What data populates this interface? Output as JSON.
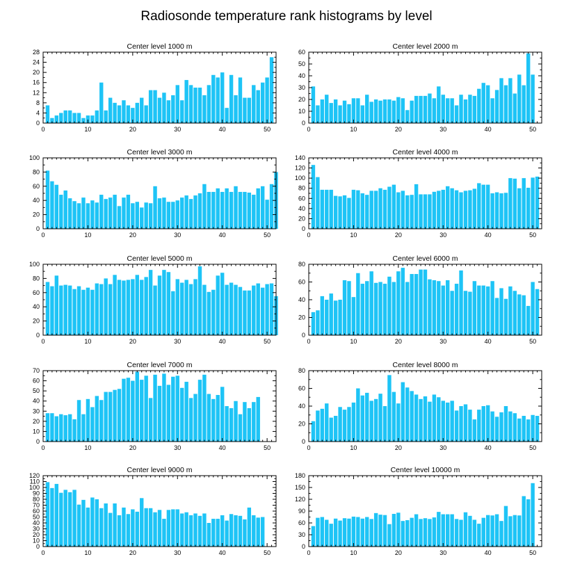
{
  "title": "Radiosonde temperature rank histograms by level",
  "colors": {
    "bar": "#1ec4f6",
    "axis": "#000000",
    "background": "#ffffff"
  },
  "chart_data": [
    {
      "type": "bar",
      "title": "Center level 1000 m",
      "xlim": [
        0,
        52
      ],
      "xticks": [
        0,
        10,
        20,
        30,
        40,
        50
      ],
      "ylim": [
        0,
        28
      ],
      "yticks": [
        0,
        4,
        8,
        12,
        16,
        20,
        24,
        28
      ],
      "values": [
        7,
        2,
        3,
        4,
        5,
        5,
        4,
        4,
        2,
        3,
        3,
        5,
        16,
        5,
        10,
        8,
        7,
        9,
        7,
        6,
        8,
        10,
        7,
        13,
        13,
        10,
        12,
        9,
        11,
        15,
        9,
        17,
        15,
        14,
        14,
        11,
        15,
        19,
        18,
        20,
        6,
        19,
        11,
        18,
        10,
        10,
        15,
        13,
        16,
        18,
        26
      ]
    },
    {
      "type": "bar",
      "title": "Center level 2000 m",
      "xlim": [
        0,
        52
      ],
      "xticks": [
        0,
        10,
        20,
        30,
        40,
        50
      ],
      "ylim": [
        0,
        60
      ],
      "yticks": [
        0,
        10,
        20,
        30,
        40,
        50,
        60
      ],
      "values": [
        31,
        15,
        20,
        24,
        17,
        20,
        15,
        19,
        16,
        21,
        21,
        15,
        24,
        18,
        20,
        19,
        20,
        20,
        19,
        22,
        21,
        11,
        19,
        23,
        23,
        23,
        25,
        21,
        31,
        24,
        21,
        21,
        15,
        24,
        20,
        24,
        23,
        29,
        34,
        32,
        21,
        28,
        38,
        32,
        38,
        25,
        41,
        32,
        59,
        41
      ]
    },
    {
      "type": "bar",
      "title": "Center level 3000 m",
      "xlim": [
        0,
        52
      ],
      "xticks": [
        0,
        10,
        20,
        30,
        40,
        50
      ],
      "ylim": [
        0,
        100
      ],
      "yticks": [
        0,
        20,
        40,
        60,
        80,
        100
      ],
      "values": [
        82,
        67,
        62,
        48,
        54,
        43,
        39,
        36,
        44,
        36,
        40,
        37,
        48,
        42,
        44,
        48,
        32,
        44,
        48,
        36,
        38,
        30,
        37,
        36,
        60,
        43,
        44,
        38,
        38,
        40,
        44,
        47,
        42,
        47,
        50,
        63,
        52,
        52,
        57,
        52,
        57,
        52,
        60,
        52,
        52,
        51,
        48,
        57,
        60,
        41,
        63,
        80
      ]
    },
    {
      "type": "bar",
      "title": "Center level 4000 m",
      "xlim": [
        0,
        52
      ],
      "xticks": [
        0,
        10,
        20,
        30,
        40,
        50
      ],
      "ylim": [
        0,
        140
      ],
      "yticks": [
        0,
        20,
        40,
        60,
        80,
        100,
        120,
        140
      ],
      "values": [
        126,
        102,
        77,
        77,
        77,
        65,
        64,
        66,
        61,
        77,
        76,
        70,
        67,
        75,
        75,
        80,
        77,
        83,
        87,
        72,
        75,
        66,
        67,
        88,
        68,
        68,
        68,
        73,
        75,
        77,
        84,
        80,
        76,
        72,
        75,
        76,
        79,
        90,
        87,
        87,
        70,
        72,
        70,
        71,
        100,
        99,
        80,
        100,
        81,
        101,
        103
      ]
    },
    {
      "type": "bar",
      "title": "Center level 5000 m",
      "xlim": [
        0,
        52
      ],
      "xticks": [
        0,
        10,
        20,
        30,
        40,
        50
      ],
      "ylim": [
        0,
        100
      ],
      "yticks": [
        0,
        20,
        40,
        60,
        80,
        100
      ],
      "values": [
        75,
        69,
        84,
        70,
        71,
        70,
        65,
        69,
        64,
        67,
        64,
        73,
        72,
        80,
        72,
        85,
        78,
        77,
        78,
        79,
        85,
        78,
        82,
        92,
        70,
        84,
        92,
        89,
        62,
        79,
        74,
        78,
        72,
        79,
        97,
        71,
        61,
        64,
        84,
        88,
        71,
        74,
        71,
        68,
        63,
        63,
        70,
        73,
        67,
        72,
        73,
        55
      ]
    },
    {
      "type": "bar",
      "title": "Center level 6000 m",
      "xlim": [
        0,
        52
      ],
      "xticks": [
        0,
        10,
        20,
        30,
        40,
        50
      ],
      "ylim": [
        0,
        80
      ],
      "yticks": [
        0,
        20,
        40,
        60,
        80
      ],
      "values": [
        26,
        28,
        44,
        40,
        47,
        39,
        40,
        62,
        61,
        43,
        70,
        58,
        61,
        72,
        59,
        60,
        58,
        66,
        60,
        72,
        76,
        60,
        69,
        69,
        74,
        74,
        63,
        62,
        61,
        56,
        62,
        50,
        58,
        73,
        50,
        49,
        61,
        56,
        56,
        55,
        61,
        42,
        53,
        41,
        55,
        50,
        46,
        45,
        33,
        60,
        52
      ]
    },
    {
      "type": "bar",
      "title": "Center level 7000 m",
      "xlim": [
        0,
        52
      ],
      "xticks": [
        0,
        10,
        20,
        30,
        40,
        50
      ],
      "ylim": [
        0,
        70
      ],
      "yticks": [
        0,
        10,
        20,
        30,
        40,
        50,
        60,
        70
      ],
      "values": [
        28,
        28,
        25,
        27,
        26,
        27,
        22,
        41,
        27,
        42,
        34,
        45,
        41,
        49,
        49,
        51,
        52,
        62,
        63,
        60,
        69,
        61,
        65,
        43,
        66,
        55,
        67,
        56,
        64,
        65,
        53,
        59,
        43,
        47,
        61,
        66,
        47,
        42,
        46,
        54,
        35,
        33,
        40,
        27,
        39,
        33,
        39,
        44
      ]
    },
    {
      "type": "bar",
      "title": "Center level 8000 m",
      "xlim": [
        0,
        52
      ],
      "xticks": [
        0,
        10,
        20,
        30,
        40,
        50
      ],
      "ylim": [
        0,
        80
      ],
      "yticks": [
        0,
        20,
        40,
        60,
        80
      ],
      "values": [
        23,
        35,
        37,
        43,
        27,
        29,
        39,
        36,
        39,
        44,
        60,
        52,
        55,
        46,
        48,
        54,
        40,
        75,
        56,
        43,
        67,
        61,
        57,
        53,
        48,
        51,
        45,
        53,
        50,
        46,
        44,
        46,
        35,
        40,
        42,
        36,
        25,
        36,
        40,
        41,
        34,
        28,
        33,
        40,
        34,
        32,
        26,
        29,
        25,
        30,
        29
      ]
    },
    {
      "type": "bar",
      "title": "Center level 9000 m",
      "xlim": [
        0,
        52
      ],
      "xticks": [
        0,
        10,
        20,
        30,
        40,
        50
      ],
      "ylim": [
        0,
        120
      ],
      "yticks": [
        0,
        10,
        20,
        30,
        40,
        50,
        60,
        70,
        80,
        90,
        100,
        110,
        120
      ],
      "values": [
        109,
        99,
        106,
        91,
        96,
        92,
        96,
        71,
        79,
        66,
        83,
        80,
        65,
        73,
        57,
        73,
        53,
        66,
        55,
        63,
        59,
        82,
        65,
        65,
        58,
        62,
        47,
        62,
        63,
        63,
        56,
        58,
        53,
        56,
        52,
        56,
        40,
        47,
        47,
        53,
        44,
        55,
        53,
        52,
        46,
        66,
        53,
        49,
        50
      ]
    },
    {
      "type": "bar",
      "title": "Center level 10000 m",
      "xlim": [
        0,
        52
      ],
      "xticks": [
        0,
        10,
        20,
        30,
        40,
        50
      ],
      "ylim": [
        0,
        180
      ],
      "yticks": [
        0,
        30,
        60,
        90,
        120,
        150,
        180
      ],
      "values": [
        52,
        73,
        75,
        68,
        58,
        71,
        66,
        72,
        71,
        76,
        75,
        71,
        75,
        70,
        85,
        81,
        80,
        57,
        83,
        86,
        65,
        67,
        73,
        82,
        70,
        72,
        70,
        74,
        88,
        82,
        82,
        82,
        70,
        68,
        87,
        78,
        68,
        58,
        73,
        80,
        79,
        82,
        65,
        103,
        77,
        80,
        79,
        128,
        120,
        161
      ]
    }
  ]
}
